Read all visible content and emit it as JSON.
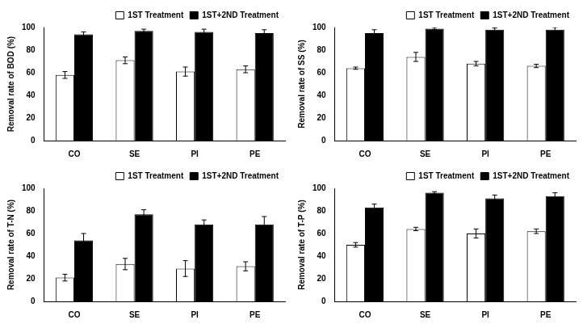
{
  "chart_data": [
    {
      "type": "bar",
      "y_label": "Removal rate of BOD (%)",
      "categories": [
        "CO",
        "SE",
        "PI",
        "PE"
      ],
      "series": [
        {
          "name": "1ST Treatment",
          "color": "#ffffff",
          "values": [
            58,
            71,
            61,
            63
          ],
          "errors": [
            3,
            3,
            4,
            3
          ]
        },
        {
          "name": "1ST+2ND Treatment",
          "color": "#000000",
          "values": [
            94,
            97,
            96,
            95
          ],
          "errors": [
            2,
            1.5,
            2.5,
            3
          ]
        }
      ],
      "ylim": [
        0,
        100
      ],
      "yticks": [
        0,
        20,
        40,
        60,
        80,
        100
      ],
      "grid": false,
      "legend": "upper right"
    },
    {
      "type": "bar",
      "y_label": "Removal rate of SS (%)",
      "categories": [
        "CO",
        "SE",
        "PI",
        "PE"
      ],
      "series": [
        {
          "name": "1ST Treatment",
          "color": "#ffffff",
          "values": [
            64,
            74,
            68,
            66
          ],
          "errors": [
            1,
            4,
            2,
            1.5
          ]
        },
        {
          "name": "1ST+2ND Treatment",
          "color": "#000000",
          "values": [
            95,
            99,
            98,
            98
          ],
          "errors": [
            3,
            1,
            1.5,
            2
          ]
        }
      ],
      "ylim": [
        0,
        100
      ],
      "yticks": [
        0,
        20,
        40,
        60,
        80,
        100
      ],
      "grid": false,
      "legend": "upper right"
    },
    {
      "type": "bar",
      "y_label": "Removal rate of T-N (%)",
      "categories": [
        "CO",
        "SE",
        "PI",
        "PE"
      ],
      "series": [
        {
          "name": "1ST Treatment",
          "color": "#ffffff",
          "values": [
            21,
            33,
            29,
            31
          ],
          "errors": [
            3,
            5,
            7,
            4
          ]
        },
        {
          "name": "1ST+2ND Treatment",
          "color": "#000000",
          "values": [
            54,
            77,
            68,
            68
          ],
          "errors": [
            6,
            4,
            4,
            7
          ]
        }
      ],
      "ylim": [
        0,
        100
      ],
      "yticks": [
        0,
        20,
        40,
        60,
        80,
        100
      ],
      "grid": false,
      "legend": "upper right"
    },
    {
      "type": "bar",
      "y_label": "Removal rate of T-P (%)",
      "categories": [
        "CO",
        "SE",
        "PI",
        "PE"
      ],
      "series": [
        {
          "name": "1ST Treatment",
          "color": "#ffffff",
          "values": [
            50,
            64,
            60,
            62
          ],
          "errors": [
            2,
            1.5,
            4,
            2
          ]
        },
        {
          "name": "1ST+2ND Treatment",
          "color": "#000000",
          "values": [
            83,
            96,
            91,
            93
          ],
          "errors": [
            3,
            1,
            3,
            3
          ]
        }
      ],
      "ylim": [
        0,
        100
      ],
      "yticks": [
        0,
        20,
        40,
        60,
        80,
        100
      ],
      "grid": false,
      "legend": "upper right"
    }
  ]
}
